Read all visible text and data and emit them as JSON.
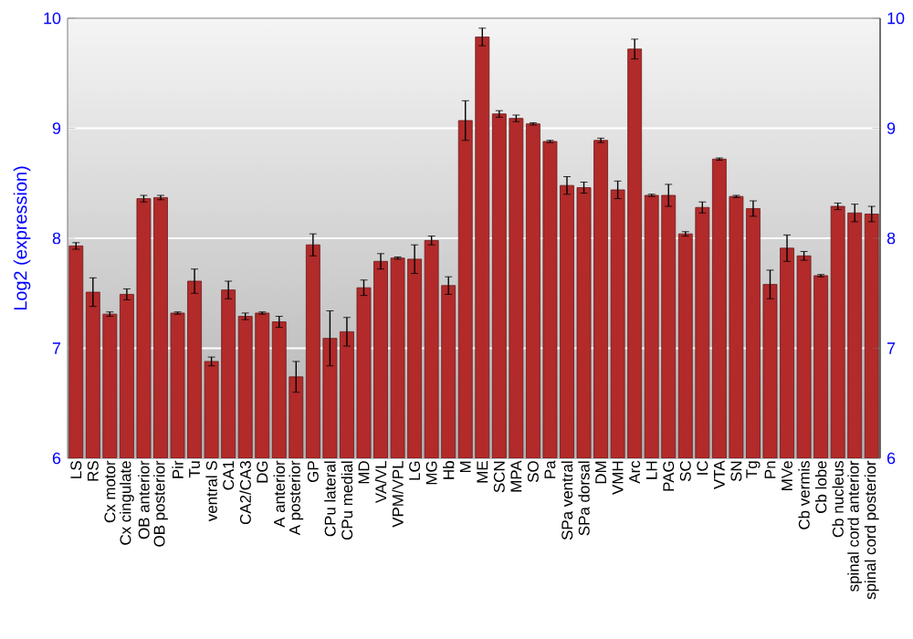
{
  "chart_data": {
    "type": "bar",
    "ylabel": "Log2 (expression)",
    "categories": [
      "LS",
      "RS",
      "Cx motor",
      "Cx cingulate",
      "OB anterior",
      "OB posterior",
      "Pir",
      "Tu",
      "ventral S",
      "CA1",
      "CA2/CA3",
      "DG",
      "A anterior",
      "A posterior",
      "GP",
      "CPu lateral",
      "CPu medial",
      "MD",
      "VA/VL",
      "VPM/VPL",
      "LG",
      "MG",
      "Hb",
      "M",
      "ME",
      "SCN",
      "MPA",
      "SO",
      "Pa",
      "SPa ventral",
      "SPa dorsal",
      "DM",
      "VMH",
      "Arc",
      "LH",
      "PAG",
      "SC",
      "IC",
      "VTA",
      "SN",
      "Tg",
      "Pn",
      "MVe",
      "Cb vermis",
      "Cb lobe",
      "Cb nucleus",
      "spinal cord anterior",
      "spinal cord posterior"
    ],
    "values": [
      7.93,
      7.51,
      7.31,
      7.49,
      8.36,
      8.37,
      7.32,
      7.61,
      6.88,
      7.53,
      7.29,
      7.32,
      7.24,
      6.74,
      7.94,
      7.09,
      7.15,
      7.55,
      7.79,
      7.82,
      7.81,
      7.98,
      7.57,
      9.07,
      9.83,
      9.13,
      9.09,
      9.04,
      8.88,
      8.48,
      8.46,
      8.89,
      8.44,
      9.72,
      8.39,
      8.39,
      8.04,
      8.28,
      8.72,
      8.38,
      8.27,
      7.58,
      7.91,
      7.84,
      7.66,
      8.29,
      8.23,
      8.22
    ],
    "errors": [
      0.03,
      0.13,
      0.02,
      0.05,
      0.03,
      0.02,
      0.01,
      0.11,
      0.04,
      0.08,
      0.03,
      0.01,
      0.05,
      0.14,
      0.1,
      0.25,
      0.13,
      0.07,
      0.07,
      0.01,
      0.13,
      0.04,
      0.08,
      0.18,
      0.08,
      0.03,
      0.03,
      0.01,
      0.01,
      0.08,
      0.05,
      0.02,
      0.08,
      0.09,
      0.01,
      0.1,
      0.02,
      0.05,
      0.01,
      0.01,
      0.07,
      0.13,
      0.12,
      0.04,
      0.01,
      0.03,
      0.08,
      0.07
    ],
    "color": "#b22a2a",
    "ylim": [
      6,
      10
    ],
    "yticks": [
      6,
      7,
      8,
      9,
      10
    ],
    "y2lim": [
      6,
      10
    ],
    "y2ticks": [
      6,
      7,
      8,
      9,
      10
    ],
    "grid": "y"
  }
}
